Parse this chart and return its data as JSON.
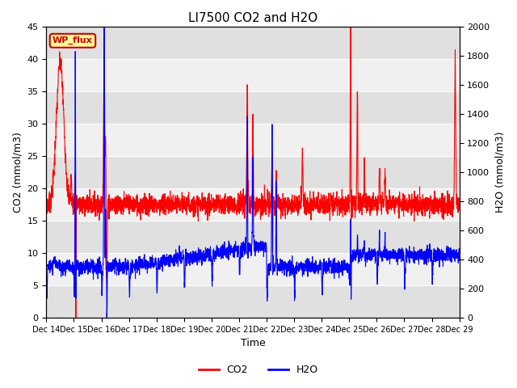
{
  "title": "LI7500 CO2 and H2O",
  "xlabel": "Time",
  "ylabel_left": "CO2 (mmol/m3)",
  "ylabel_right": "H2O (mmol/m3)",
  "ylim_left": [
    0,
    45
  ],
  "ylim_right": [
    0,
    2000
  ],
  "x_tick_labels": [
    "Dec 14",
    "Dec 15",
    "Dec 16",
    "Dec 17",
    "Dec 18",
    "Dec 19",
    "Dec 20",
    "Dec 21",
    "Dec 22",
    "Dec 23",
    "Dec 24",
    "Dec 25",
    "Dec 26",
    "Dec 27",
    "Dec 28",
    "Dec 29"
  ],
  "watermark_text": "WP_flux",
  "watermark_color": "#cc0000",
  "watermark_bg": "#ffff99",
  "co2_color": "#ff0000",
  "h2o_color": "#0000ff",
  "bg_band_dark": "#e0e0e0",
  "bg_band_light": "#f0f0f0",
  "legend_entries": [
    "CO2",
    "H2O"
  ],
  "n_days": 15,
  "n_pts": 3000
}
